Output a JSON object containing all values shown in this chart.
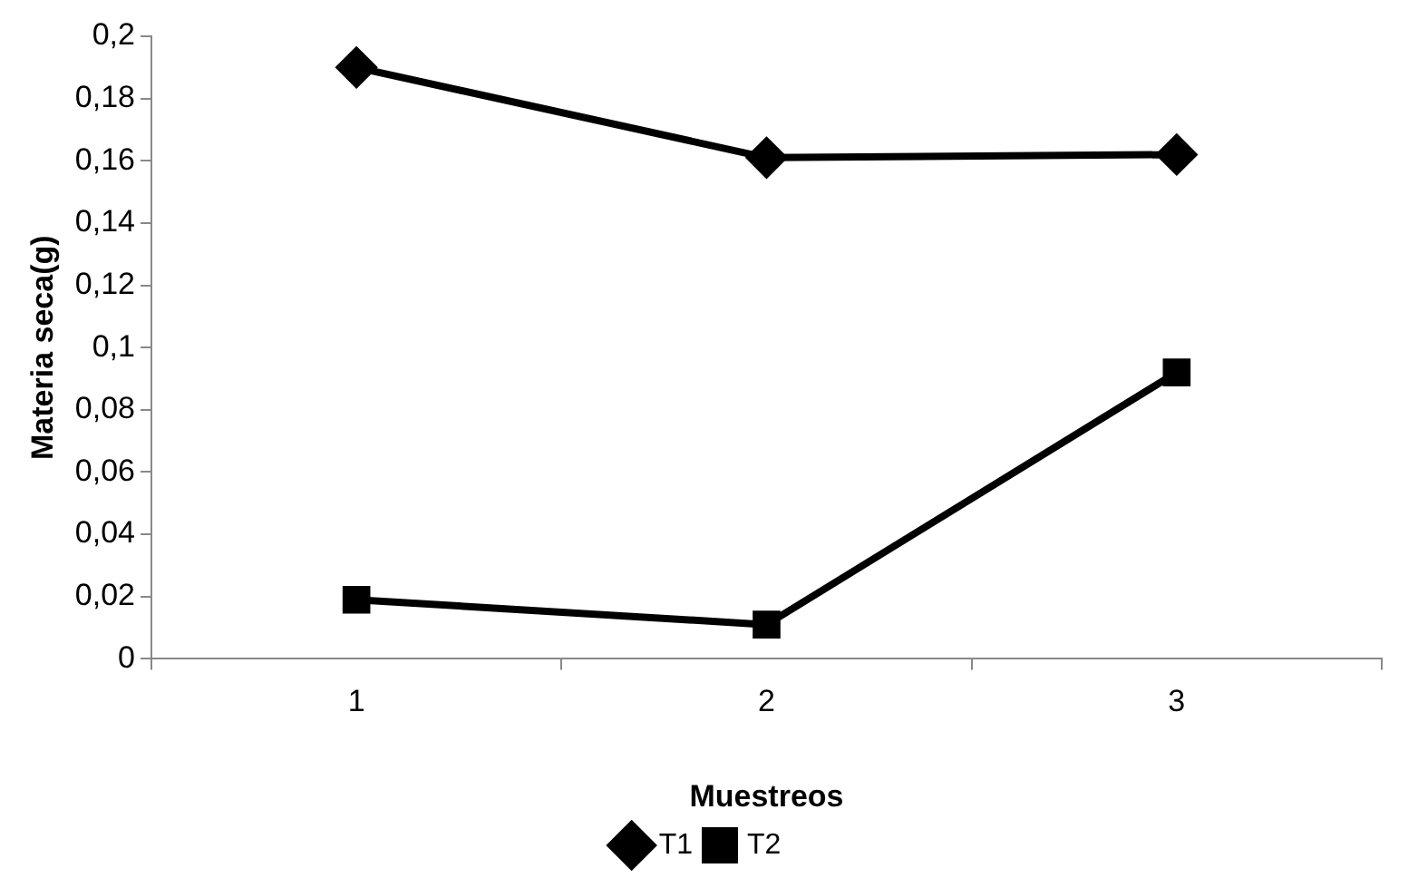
{
  "chart_data": {
    "type": "line",
    "xlabel": "Muestreos",
    "ylabel": "Materia seca(g)",
    "categories": [
      "1",
      "2",
      "3"
    ],
    "series": [
      {
        "name": "T1",
        "color": "#000000",
        "marker": "diamond",
        "values": [
          0.19,
          0.161,
          0.162
        ]
      },
      {
        "name": "T2",
        "color": "#000000",
        "marker": "square",
        "values": [
          0.019,
          0.011,
          0.092
        ]
      }
    ],
    "ylim": [
      0,
      0.2
    ],
    "yticks": [
      0,
      {
        "value": 0.02,
        "label": "0,02"
      },
      {
        "value": 0.04,
        "label": "0,04"
      },
      {
        "value": 0.06,
        "label": "0,06"
      },
      {
        "value": 0.08,
        "label": "0,08"
      },
      {
        "value": 0.1,
        "label": "0,1"
      },
      {
        "value": 0.12,
        "label": "0,12"
      },
      {
        "value": 0.14,
        "label": "0,14"
      },
      {
        "value": 0.16,
        "label": "0,16"
      },
      {
        "value": 0.18,
        "label": "0,18"
      },
      {
        "value": 0.2,
        "label": "0,2"
      }
    ],
    "grid": false,
    "legend": "bottom",
    "line_style": "solid"
  }
}
